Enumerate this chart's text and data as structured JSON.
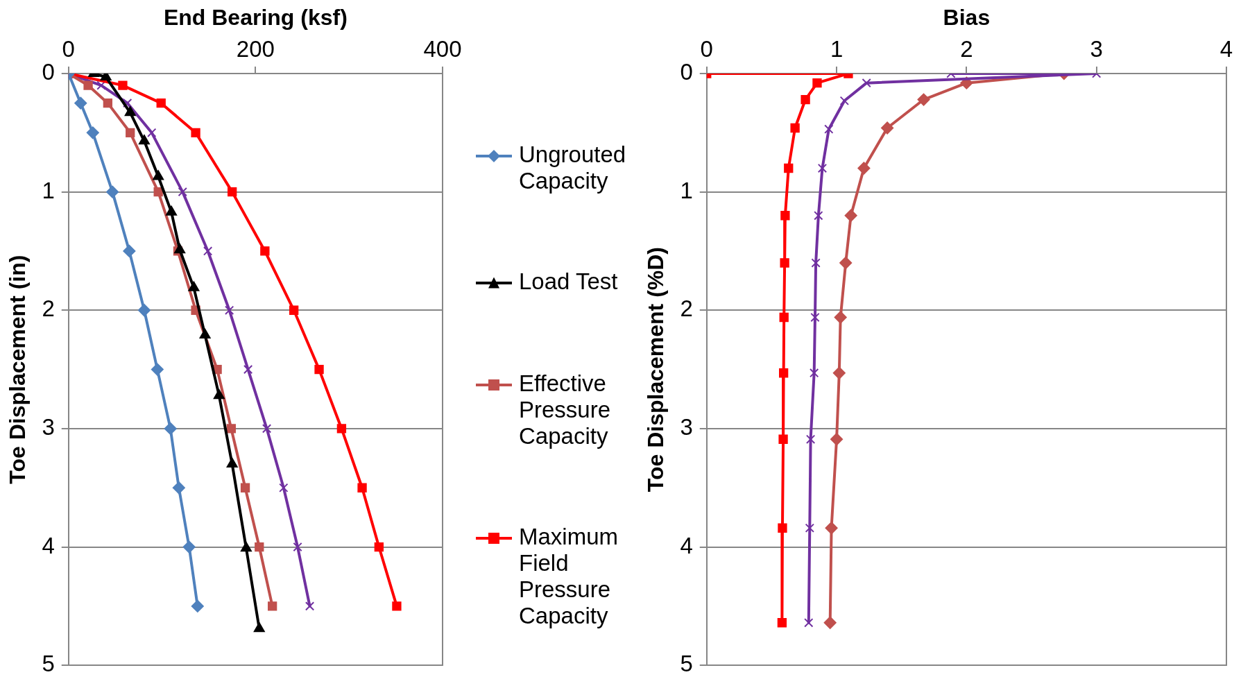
{
  "chart_data": [
    {
      "type": "line",
      "xlabel": "End Bearing (ksf)",
      "ylabel": "Toe Displacement (in)",
      "xlim": [
        0,
        400
      ],
      "xticks": [
        0,
        200,
        400
      ],
      "ylim": [
        5,
        0
      ],
      "yticks": [
        0,
        1,
        2,
        3,
        4,
        5
      ],
      "grid": "y",
      "legend": "right",
      "line_style": "solid",
      "series": [
        {
          "name": "Ungrouted Capacity",
          "color": "#4f81bd",
          "marker": "diamond",
          "x": [
            0,
            13,
            26,
            47,
            65,
            81,
            95,
            109,
            118,
            129,
            138
          ],
          "values": [
            0,
            0.25,
            0.5,
            1,
            1.5,
            2,
            2.5,
            3,
            3.5,
            4,
            4.5
          ]
        },
        {
          "name": "Load Test",
          "color": "#000000",
          "marker": "triangle",
          "x": [
            27,
            40,
            66,
            81,
            96,
            110,
            119,
            134,
            146,
            161,
            175,
            190,
            204
          ],
          "values": [
            0,
            0.03,
            0.33,
            0.57,
            0.87,
            1.17,
            1.49,
            1.81,
            2.21,
            2.72,
            3.3,
            4.01,
            4.69
          ]
        },
        {
          "name": "Effective Pressure Capacity",
          "color": "#c0504d",
          "marker": "square",
          "x": [
            0,
            21,
            42,
            66,
            96,
            117,
            136,
            159,
            174,
            189,
            204,
            218
          ],
          "values": [
            0,
            0.1,
            0.25,
            0.5,
            1,
            1.5,
            2,
            2.5,
            3,
            3.5,
            4,
            4.5
          ]
        },
        {
          "name": "Maximum Field Pressure Capacity",
          "color": "#ff0000",
          "marker": "square",
          "x": [
            0,
            58,
            99,
            136,
            175,
            210,
            241,
            268,
            292,
            314,
            332,
            351
          ],
          "values": [
            0,
            0.1,
            0.25,
            0.5,
            1,
            1.5,
            2,
            2.5,
            3,
            3.5,
            4,
            4.5
          ]
        },
        {
          "color": "#7030a0",
          "marker": "cross",
          "x": [
            0,
            35,
            63,
            89,
            122,
            149,
            172,
            192,
            212,
            230,
            245,
            258
          ],
          "values": [
            0,
            0.1,
            0.25,
            0.5,
            1,
            1.5,
            2,
            2.5,
            3,
            3.5,
            4,
            4.5
          ]
        }
      ]
    },
    {
      "type": "line",
      "xlabel": "Bias",
      "ylabel": "Toe Displacement (%D)",
      "xlim": [
        0,
        4
      ],
      "xticks": [
        0,
        1,
        2,
        3,
        4
      ],
      "ylim": [
        5,
        0
      ],
      "yticks": [
        0,
        1,
        2,
        3,
        4,
        5
      ],
      "grid": "y",
      "legend": false,
      "line_style": "solid",
      "series": [
        {
          "color": "#ff0000",
          "marker": "square",
          "x": [
            0,
            1.09,
            0.85,
            0.76,
            0.68,
            0.63,
            0.604,
            0.6,
            0.595,
            0.592,
            0.589,
            0.583,
            0.58
          ],
          "values": [
            0,
            0,
            0.08,
            0.22,
            0.46,
            0.8,
            1.2,
            1.6,
            2.06,
            2.53,
            3.09,
            3.84,
            4.64
          ]
        },
        {
          "color": "#7030a0",
          "marker": "cross",
          "x": [
            1.88,
            3.0,
            1.23,
            1.06,
            0.94,
            0.89,
            0.86,
            0.84,
            0.834,
            0.827,
            0.8,
            0.793,
            0.785
          ],
          "values": [
            0,
            0,
            0.08,
            0.23,
            0.47,
            0.8,
            1.2,
            1.6,
            2.06,
            2.53,
            3.09,
            3.84,
            4.64
          ]
        },
        {
          "color": "#c0504d",
          "marker": "diamond",
          "x": [
            2.75,
            2.0,
            1.67,
            1.39,
            1.21,
            1.11,
            1.07,
            1.03,
            1.02,
            1.0,
            0.96,
            0.95
          ],
          "values": [
            0,
            0.08,
            0.22,
            0.46,
            0.8,
            1.2,
            1.6,
            2.06,
            2.53,
            3.09,
            3.84,
            4.64
          ]
        }
      ]
    }
  ]
}
